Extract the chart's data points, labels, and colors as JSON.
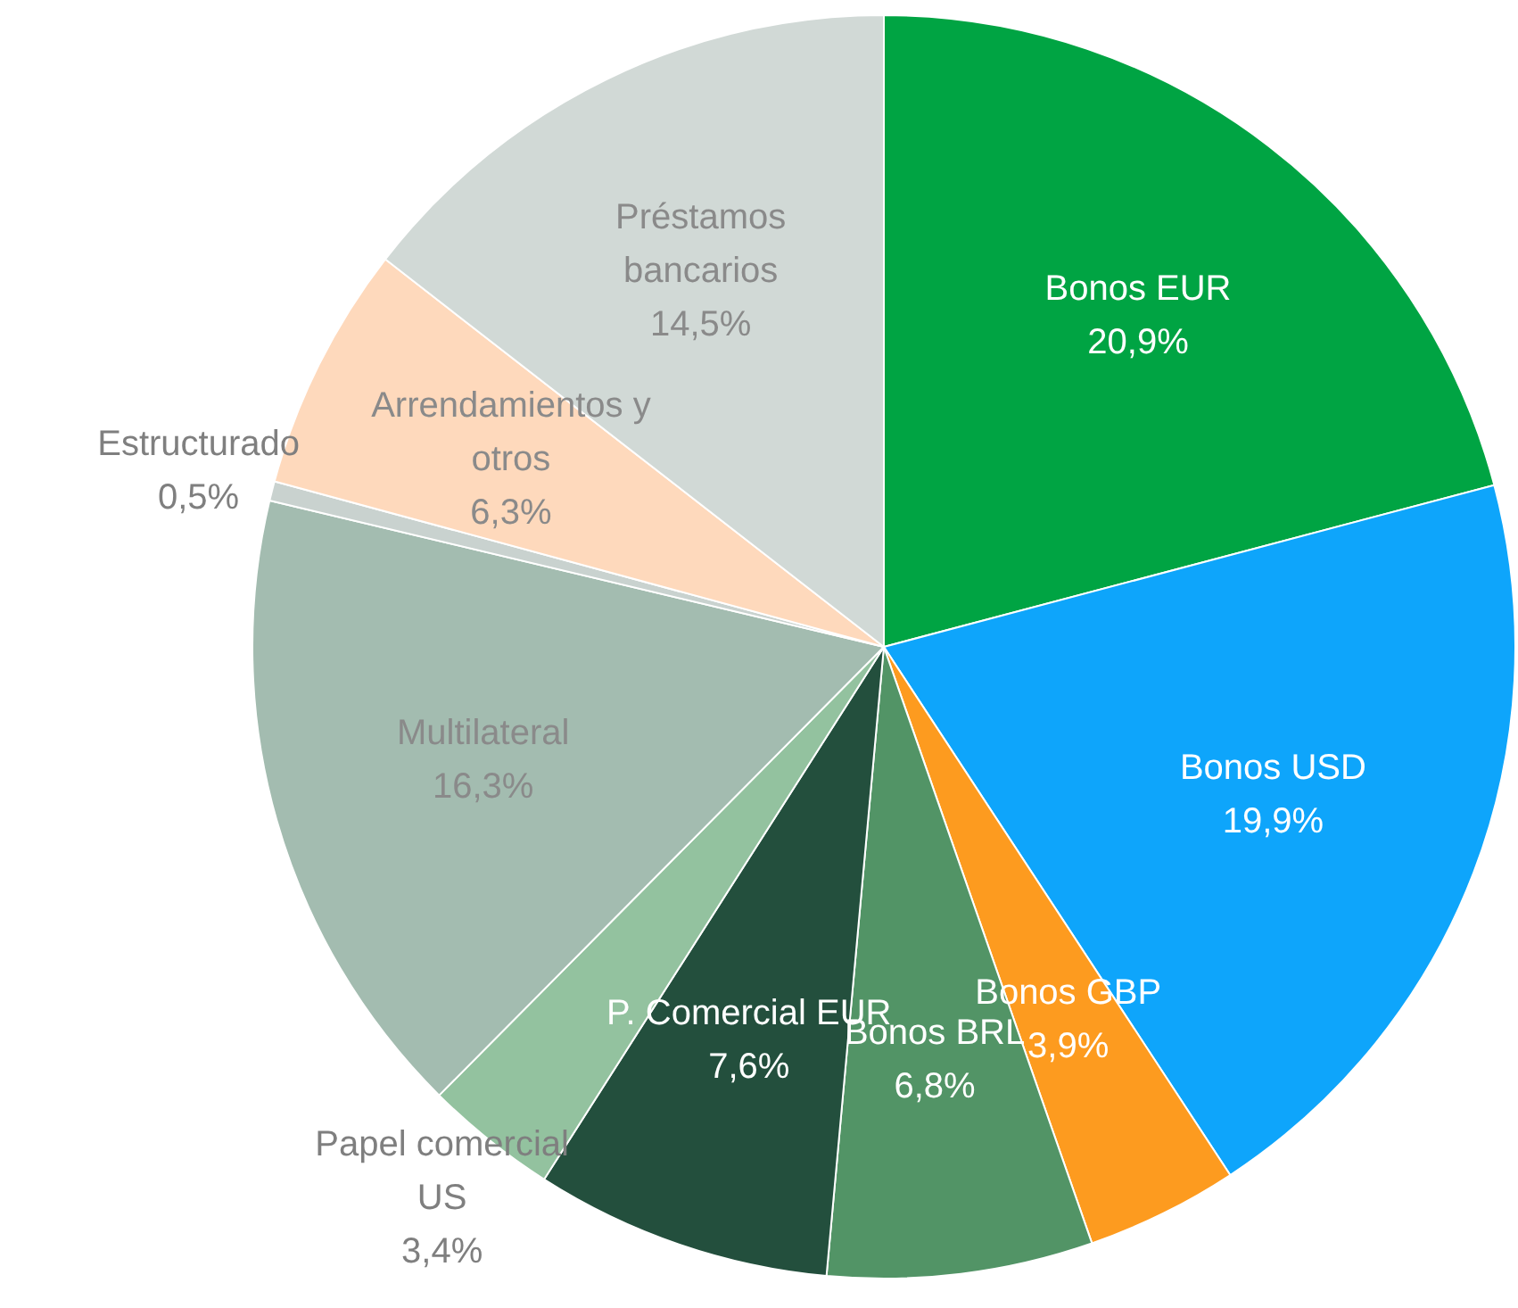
{
  "chart_data": {
    "type": "pie",
    "categories": [
      "Bonos EUR",
      "Bonos USD",
      "Bonos GBP",
      "Bonos BRL",
      "P. Comercial EUR",
      "Papel comercial US",
      "Multilateral",
      "Estructurado",
      "Arrendamientos y otros",
      "Préstamos bancarios"
    ],
    "values": [
      20.9,
      19.9,
      3.9,
      6.8,
      7.6,
      3.4,
      16.3,
      0.5,
      6.3,
      14.5
    ],
    "colors": [
      "#00a443",
      "#0ea5fb",
      "#fd9b1f",
      "#529466",
      "#234f3d",
      "#93c29f",
      "#a3bcb0",
      "#c9d2cf",
      "#fed9bc",
      "#d1d9d6"
    ],
    "value_labels": [
      "20,9%",
      "19,9%",
      "3,9%",
      "6,8%",
      "7,6%",
      "3,4%",
      "16,3%",
      "0,5%",
      "6,3%",
      "14,5%"
    ],
    "legend": false
  }
}
